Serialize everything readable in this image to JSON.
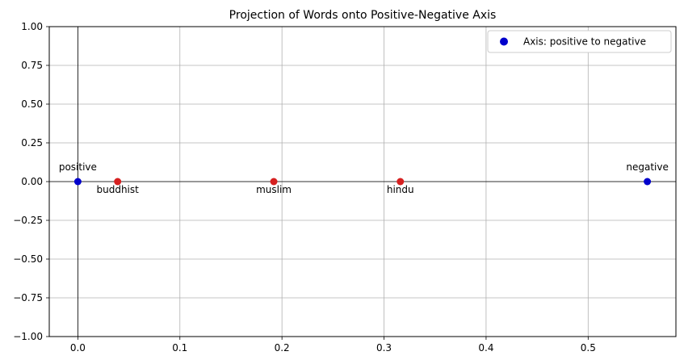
{
  "chart_data": {
    "type": "scatter",
    "title": "Projection of Words onto Positive-Negative Axis",
    "xlabel": "",
    "ylabel": "",
    "xlim": [
      -0.028,
      0.586
    ],
    "ylim": [
      -1.0,
      1.0
    ],
    "x_ticks": [
      0.0,
      0.1,
      0.2,
      0.3,
      0.4,
      0.5
    ],
    "x_tick_labels": [
      "0.0",
      "0.1",
      "0.2",
      "0.3",
      "0.4",
      "0.5"
    ],
    "y_ticks": [
      1.0,
      0.75,
      0.5,
      0.25,
      0.0,
      -0.25,
      -0.5,
      -0.75,
      -1.0
    ],
    "y_tick_labels": [
      "1.00",
      "0.75",
      "0.50",
      "0.25",
      "0.00",
      "−0.25",
      "−0.50",
      "−0.75",
      "−1.00"
    ],
    "grid": true,
    "reference_lines": {
      "horizontal_y": 0.0,
      "vertical_x": 0.0
    },
    "legend_position": "top-right",
    "series": [
      {
        "name": "Axis: positive to negative",
        "color": "#0000cc",
        "points": [
          {
            "label": "positive",
            "x": 0.0,
            "y": 0.0,
            "label_position": "above"
          },
          {
            "label": "negative",
            "x": 0.558,
            "y": 0.0,
            "label_position": "above"
          }
        ]
      },
      {
        "color": "#d62020",
        "points": [
          {
            "label": "buddhist",
            "x": 0.039,
            "y": 0.0,
            "label_position": "below"
          },
          {
            "label": "muslim",
            "x": 0.192,
            "y": 0.0,
            "label_position": "below"
          },
          {
            "label": "hindu",
            "x": 0.316,
            "y": 0.0,
            "label_position": "below"
          }
        ]
      }
    ]
  }
}
